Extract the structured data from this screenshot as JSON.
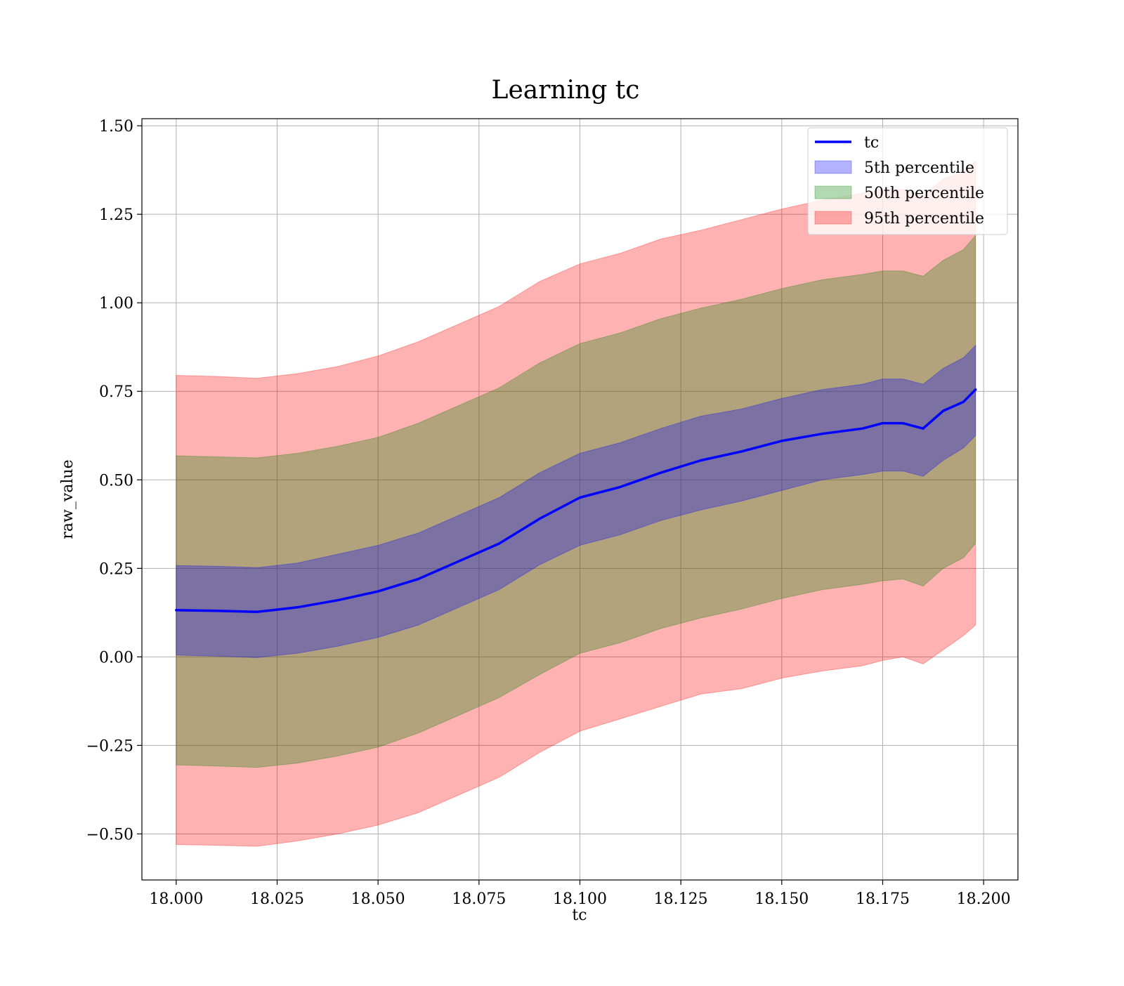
{
  "chart_data": {
    "type": "area",
    "title": "Learning tc",
    "xlabel": "tc",
    "ylabel": "raw_value",
    "xlim": [
      17.9915,
      18.2085
    ],
    "ylim": [
      -0.63,
      1.52
    ],
    "x_ticks": [
      18.0,
      18.025,
      18.05,
      18.075,
      18.1,
      18.125,
      18.15,
      18.175,
      18.2
    ],
    "x_tick_labels": [
      "18.000",
      "18.025",
      "18.050",
      "18.075",
      "18.100",
      "18.125",
      "18.150",
      "18.175",
      "18.200"
    ],
    "y_ticks": [
      -0.5,
      -0.25,
      0.0,
      0.25,
      0.5,
      0.75,
      1.0,
      1.25,
      1.5
    ],
    "y_tick_labels": [
      "−0.50",
      "−0.25",
      "0.00",
      "0.25",
      "0.50",
      "0.75",
      "1.00",
      "1.25",
      "1.50"
    ],
    "grid": true,
    "legend_position": "upper-right",
    "x": [
      18.0,
      18.01,
      18.02,
      18.03,
      18.04,
      18.05,
      18.06,
      18.07,
      18.08,
      18.09,
      18.1,
      18.11,
      18.12,
      18.13,
      18.14,
      18.15,
      18.16,
      18.17,
      18.175,
      18.18,
      18.185,
      18.19,
      18.195,
      18.198
    ],
    "line": {
      "name": "tc",
      "color": "#0000ff",
      "values": [
        0.132,
        0.13,
        0.127,
        0.14,
        0.16,
        0.185,
        0.22,
        0.27,
        0.32,
        0.39,
        0.45,
        0.48,
        0.52,
        0.555,
        0.58,
        0.61,
        0.63,
        0.645,
        0.66,
        0.66,
        0.645,
        0.695,
        0.72,
        0.755
      ]
    },
    "bands": [
      {
        "name": "95th percentile",
        "color": "#ff0000",
        "opacity": 0.3,
        "lower": [
          -0.53,
          -0.532,
          -0.535,
          -0.52,
          -0.5,
          -0.475,
          -0.44,
          -0.39,
          -0.34,
          -0.27,
          -0.21,
          -0.175,
          -0.14,
          -0.105,
          -0.09,
          -0.06,
          -0.04,
          -0.025,
          -0.01,
          0.0,
          -0.02,
          0.02,
          0.06,
          0.09
        ],
        "upper": [
          0.795,
          0.792,
          0.787,
          0.8,
          0.82,
          0.85,
          0.89,
          0.94,
          0.99,
          1.06,
          1.11,
          1.14,
          1.18,
          1.205,
          1.235,
          1.265,
          1.29,
          1.31,
          1.32,
          1.32,
          1.3,
          1.35,
          1.37,
          1.4
        ]
      },
      {
        "name": "50th percentile",
        "color": "#008000",
        "opacity": 0.3,
        "lower": [
          -0.305,
          -0.308,
          -0.312,
          -0.3,
          -0.28,
          -0.255,
          -0.215,
          -0.165,
          -0.115,
          -0.05,
          0.01,
          0.04,
          0.08,
          0.11,
          0.135,
          0.165,
          0.19,
          0.205,
          0.215,
          0.22,
          0.2,
          0.25,
          0.28,
          0.32
        ],
        "upper": [
          0.568,
          0.565,
          0.562,
          0.575,
          0.595,
          0.62,
          0.66,
          0.71,
          0.76,
          0.83,
          0.885,
          0.915,
          0.955,
          0.985,
          1.01,
          1.04,
          1.065,
          1.08,
          1.09,
          1.09,
          1.075,
          1.12,
          1.15,
          1.19
        ]
      },
      {
        "name": "5th percentile",
        "color": "#0000ff",
        "opacity": 0.3,
        "lower": [
          0.005,
          0.002,
          -0.002,
          0.01,
          0.03,
          0.055,
          0.09,
          0.14,
          0.19,
          0.26,
          0.315,
          0.345,
          0.385,
          0.415,
          0.44,
          0.47,
          0.5,
          0.515,
          0.525,
          0.525,
          0.51,
          0.555,
          0.59,
          0.625
        ],
        "upper": [
          0.258,
          0.256,
          0.252,
          0.265,
          0.29,
          0.315,
          0.35,
          0.4,
          0.45,
          0.52,
          0.575,
          0.605,
          0.645,
          0.68,
          0.7,
          0.73,
          0.755,
          0.77,
          0.785,
          0.785,
          0.77,
          0.815,
          0.845,
          0.88
        ]
      }
    ],
    "legend": [
      {
        "label": "tc",
        "kind": "line",
        "color": "#0000ff",
        "opacity": 1
      },
      {
        "label": "5th percentile",
        "kind": "patch",
        "color": "#0000ff",
        "opacity": 0.3
      },
      {
        "label": "50th percentile",
        "kind": "patch",
        "color": "#008000",
        "opacity": 0.3
      },
      {
        "label": "95th percentile",
        "kind": "patch",
        "color": "#ff0000",
        "opacity": 0.3
      }
    ]
  }
}
